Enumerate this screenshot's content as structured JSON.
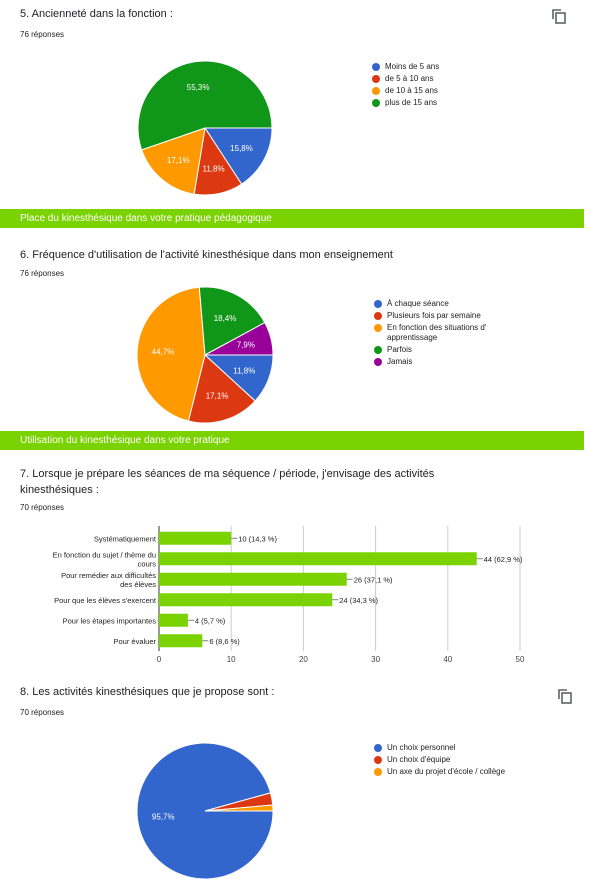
{
  "q5": {
    "title": "5. Ancienneté dans la fonction :",
    "responses": "76 réponses",
    "chart_data": {
      "type": "pie",
      "categories": [
        "Moins de 5 ans",
        "de 5 à 10 ans",
        "de 10 à 15 ans",
        "plus de 15 ans"
      ],
      "values": [
        15.8,
        11.8,
        17.1,
        55.3
      ],
      "value_labels": [
        "15,8%",
        "11,8%",
        "17,1%",
        "55,3%"
      ],
      "colors": [
        "#3366cc",
        "#dc3912",
        "#ff9900",
        "#109618"
      ],
      "legend_position": "right"
    }
  },
  "band1": {
    "text": "Place du kinesthésique dans votre pratique pédagogique"
  },
  "q6": {
    "title": "6. Fréquence d'utilisation de l'activité kinesthésique dans mon enseignement",
    "responses": "76 réponses",
    "chart_data": {
      "type": "pie",
      "categories": [
        "À chaque séance",
        "Plusieurs fois par semaine",
        "En fonction des situations d' apprentissage",
        "Parfois",
        "Jamais"
      ],
      "values": [
        11.8,
        17.1,
        44.7,
        18.4,
        7.9
      ],
      "value_labels": [
        "11,8%",
        "17,1%",
        "44,7%",
        "18,4%",
        "7,9%"
      ],
      "colors": [
        "#3366cc",
        "#dc3912",
        "#ff9900",
        "#109618",
        "#990099"
      ],
      "legend_position": "right"
    }
  },
  "band2": {
    "text": "Utilisation du kinesthésique dans votre pratique"
  },
  "q7": {
    "title_line1": "7. Lorsque je prépare les séances de ma séquence / période, j'envisage des activités",
    "title_line2": "kinesthésiques :",
    "responses": "70 réponses",
    "chart_data": {
      "type": "bar",
      "orientation": "horizontal",
      "categories": [
        [
          "Systématiquement"
        ],
        [
          "En fonction du sujet / thème du",
          "cours"
        ],
        [
          "Pour remédier aux difficultés",
          "des élèves"
        ],
        [
          "Pour que les élèves s'exercent"
        ],
        [
          "Pour les étapes importantes"
        ],
        [
          "Pour évaluer"
        ]
      ],
      "values": [
        10,
        44,
        26,
        24,
        4,
        6
      ],
      "value_labels": [
        "10 (14,3 %)",
        "44 (62,9 %)",
        "26 (37,1 %)",
        "24 (34,3 %)",
        "4 (5,7 %)",
        "6 (8,6 %)"
      ],
      "xlim": [
        0,
        50
      ],
      "xticks": [
        "0",
        "10",
        "20",
        "30",
        "40",
        "50"
      ],
      "color": "#7ad300",
      "grid": true
    }
  },
  "q8": {
    "title": "8. Les activités kinesthésiques que je propose sont :",
    "responses": "70 réponses",
    "chart_data": {
      "type": "pie",
      "categories": [
        "Un choix personnel",
        "Un choix d'équipe",
        "Un axe du projet d'école / collège"
      ],
      "values": [
        95.7,
        2.9,
        1.4
      ],
      "value_labels": [
        "95,7%",
        "",
        ""
      ],
      "colors": [
        "#3366cc",
        "#dc3912",
        "#ff9900"
      ],
      "legend_position": "right"
    }
  }
}
